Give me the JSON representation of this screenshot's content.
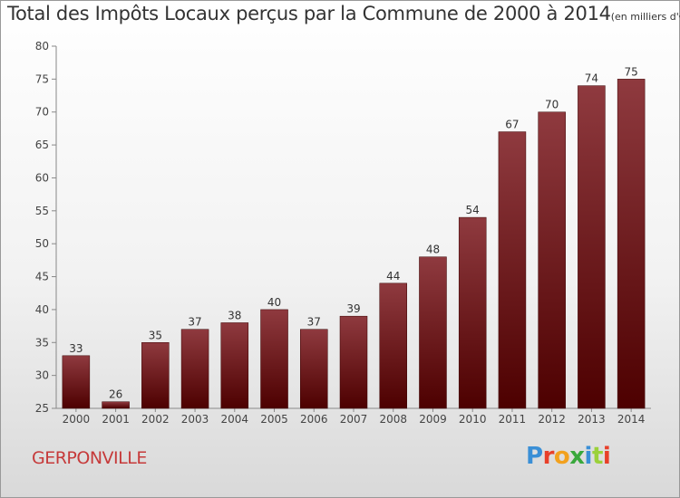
{
  "header": {
    "title": "Total des Impôts Locaux perçus par la Commune de 2000 à 2014",
    "subtitle": "(en milliers d'€)"
  },
  "footer": {
    "commune": "GERPONVILLE",
    "logo_text": "Proxiti",
    "logo_colors": [
      "#3a8fd6",
      "#e8402a",
      "#f2a11e",
      "#39a83c",
      "#3a8fd6",
      "#9bd13a",
      "#e8402a"
    ]
  },
  "chart_data": {
    "type": "bar",
    "title": "Total des Impôts Locaux perçus par la Commune de 2000 à 2014",
    "xlabel": "",
    "ylabel": "",
    "categories": [
      "2000",
      "2001",
      "2002",
      "2003",
      "2004",
      "2005",
      "2006",
      "2007",
      "2008",
      "2009",
      "2010",
      "2011",
      "2012",
      "2013",
      "2014"
    ],
    "values": [
      33,
      26,
      35,
      37,
      38,
      40,
      37,
      39,
      44,
      48,
      54,
      67,
      70,
      74,
      75
    ],
    "ylim": [
      25,
      80
    ],
    "yticks": [
      25,
      30,
      35,
      40,
      45,
      50,
      55,
      60,
      65,
      70,
      75,
      80
    ],
    "grid": false,
    "bar_color_top": "#8f3a3f",
    "bar_color_bottom": "#4d0000"
  }
}
